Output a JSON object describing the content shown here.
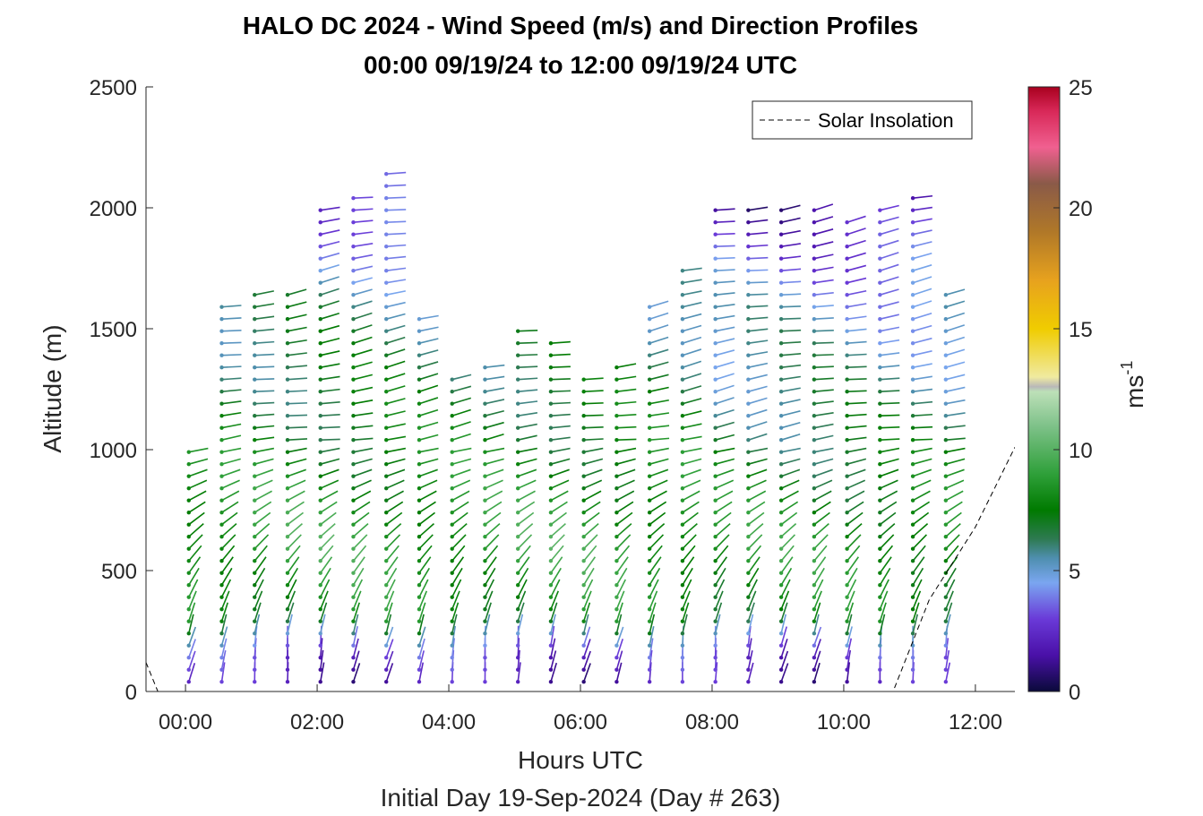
{
  "chart_data": {
    "type": "wind-barb-profile",
    "title_line1": "HALO DC 2024 - Wind Speed (m/s) and Direction Profiles",
    "title_line2": "00:00 09/19/24 to 12:00 09/19/24  UTC",
    "xlabel": "Hours UTC",
    "xlabel2": "Initial Day 19-Sep-2024 (Day # 263)",
    "ylabel": "Altitude (m)",
    "colorbar_label": "ms",
    "colorbar_label_exp": "-1",
    "x_range_hours": [
      -0.6,
      12.6
    ],
    "y_range_m": [
      0,
      2500
    ],
    "x_ticks": [
      {
        "value": 0,
        "label": "00:00"
      },
      {
        "value": 2,
        "label": "02:00"
      },
      {
        "value": 4,
        "label": "04:00"
      },
      {
        "value": 6,
        "label": "06:00"
      },
      {
        "value": 8,
        "label": "08:00"
      },
      {
        "value": 10,
        "label": "10:00"
      },
      {
        "value": 12,
        "label": "12:00"
      }
    ],
    "y_ticks": [
      {
        "value": 0,
        "label": "0"
      },
      {
        "value": 500,
        "label": "500"
      },
      {
        "value": 1000,
        "label": "1000"
      },
      {
        "value": 1500,
        "label": "1500"
      },
      {
        "value": 2000,
        "label": "2000"
      },
      {
        "value": 2500,
        "label": "2500"
      }
    ],
    "colorbar_range": [
      0,
      25
    ],
    "colorbar_ticks": [
      {
        "value": 0,
        "label": "0"
      },
      {
        "value": 5,
        "label": "5"
      },
      {
        "value": 10,
        "label": "10"
      },
      {
        "value": 15,
        "label": "15"
      },
      {
        "value": 20,
        "label": "20"
      },
      {
        "value": 25,
        "label": "25"
      }
    ],
    "colormap_stops": [
      {
        "v": 0,
        "c": "#0a0a3a"
      },
      {
        "v": 1.5,
        "c": "#4a10a8"
      },
      {
        "v": 3,
        "c": "#6a3ad8"
      },
      {
        "v": 4.5,
        "c": "#7aa6f0"
      },
      {
        "v": 5.5,
        "c": "#4f8fb0"
      },
      {
        "v": 6.3,
        "c": "#2e7a52"
      },
      {
        "v": 7.5,
        "c": "#007a00"
      },
      {
        "v": 9,
        "c": "#2fa03a"
      },
      {
        "v": 11,
        "c": "#7fc28a"
      },
      {
        "v": 12.4,
        "c": "#bde0b8"
      },
      {
        "v": 12.6,
        "c": "#b8b8b8"
      },
      {
        "v": 13,
        "c": "#f0eaa0"
      },
      {
        "v": 15,
        "c": "#f0cc00"
      },
      {
        "v": 17,
        "c": "#e7a21e"
      },
      {
        "v": 19,
        "c": "#b07828"
      },
      {
        "v": 21,
        "c": "#8a5a48"
      },
      {
        "v": 22.5,
        "c": "#f06090"
      },
      {
        "v": 24,
        "c": "#d82858"
      },
      {
        "v": 25,
        "c": "#a8001e"
      }
    ],
    "profile_times_hours": [
      0.05,
      0.55,
      1.05,
      1.55,
      2.05,
      2.55,
      3.05,
      3.55,
      4.05,
      4.55,
      5.05,
      5.55,
      6.05,
      6.55,
      7.05,
      7.55,
      8.05,
      8.55,
      9.05,
      9.55,
      10.05,
      10.55,
      11.05,
      11.55
    ],
    "profile_top_altitude_m": [
      1020,
      1620,
      1660,
      1660,
      2000,
      2080,
      2140,
      1560,
      1290,
      1340,
      1500,
      1460,
      1320,
      1380,
      1620,
      1760,
      2020,
      2010,
      2010,
      2010,
      1960,
      2020,
      2060,
      1640
    ],
    "barb_altitude_step_m": 50,
    "barb_lowest_altitude_m": 40,
    "speed_profile_knots_m_per_s": [
      {
        "alt": 40,
        "speed": 2.0
      },
      {
        "alt": 150,
        "speed": 3.0
      },
      {
        "alt": 300,
        "speed": 8.0
      },
      {
        "alt": 600,
        "speed": 9.0
      },
      {
        "alt": 900,
        "speed": 8.0
      },
      {
        "alt": 1200,
        "speed": 7.0
      },
      {
        "alt": 1600,
        "speed": 6.0
      },
      {
        "alt": 2100,
        "speed": 2.5
      }
    ],
    "solar_insolation_line": [
      {
        "x": -0.6,
        "y": 120
      },
      {
        "x": -0.42,
        "y": 0
      },
      {
        "x": 10.75,
        "y": 0
      },
      {
        "x": 11.3,
        "y": 380
      },
      {
        "x": 12.0,
        "y": 680
      },
      {
        "x": 12.6,
        "y": 1010
      }
    ],
    "legend_label": "Solar Insolation"
  }
}
